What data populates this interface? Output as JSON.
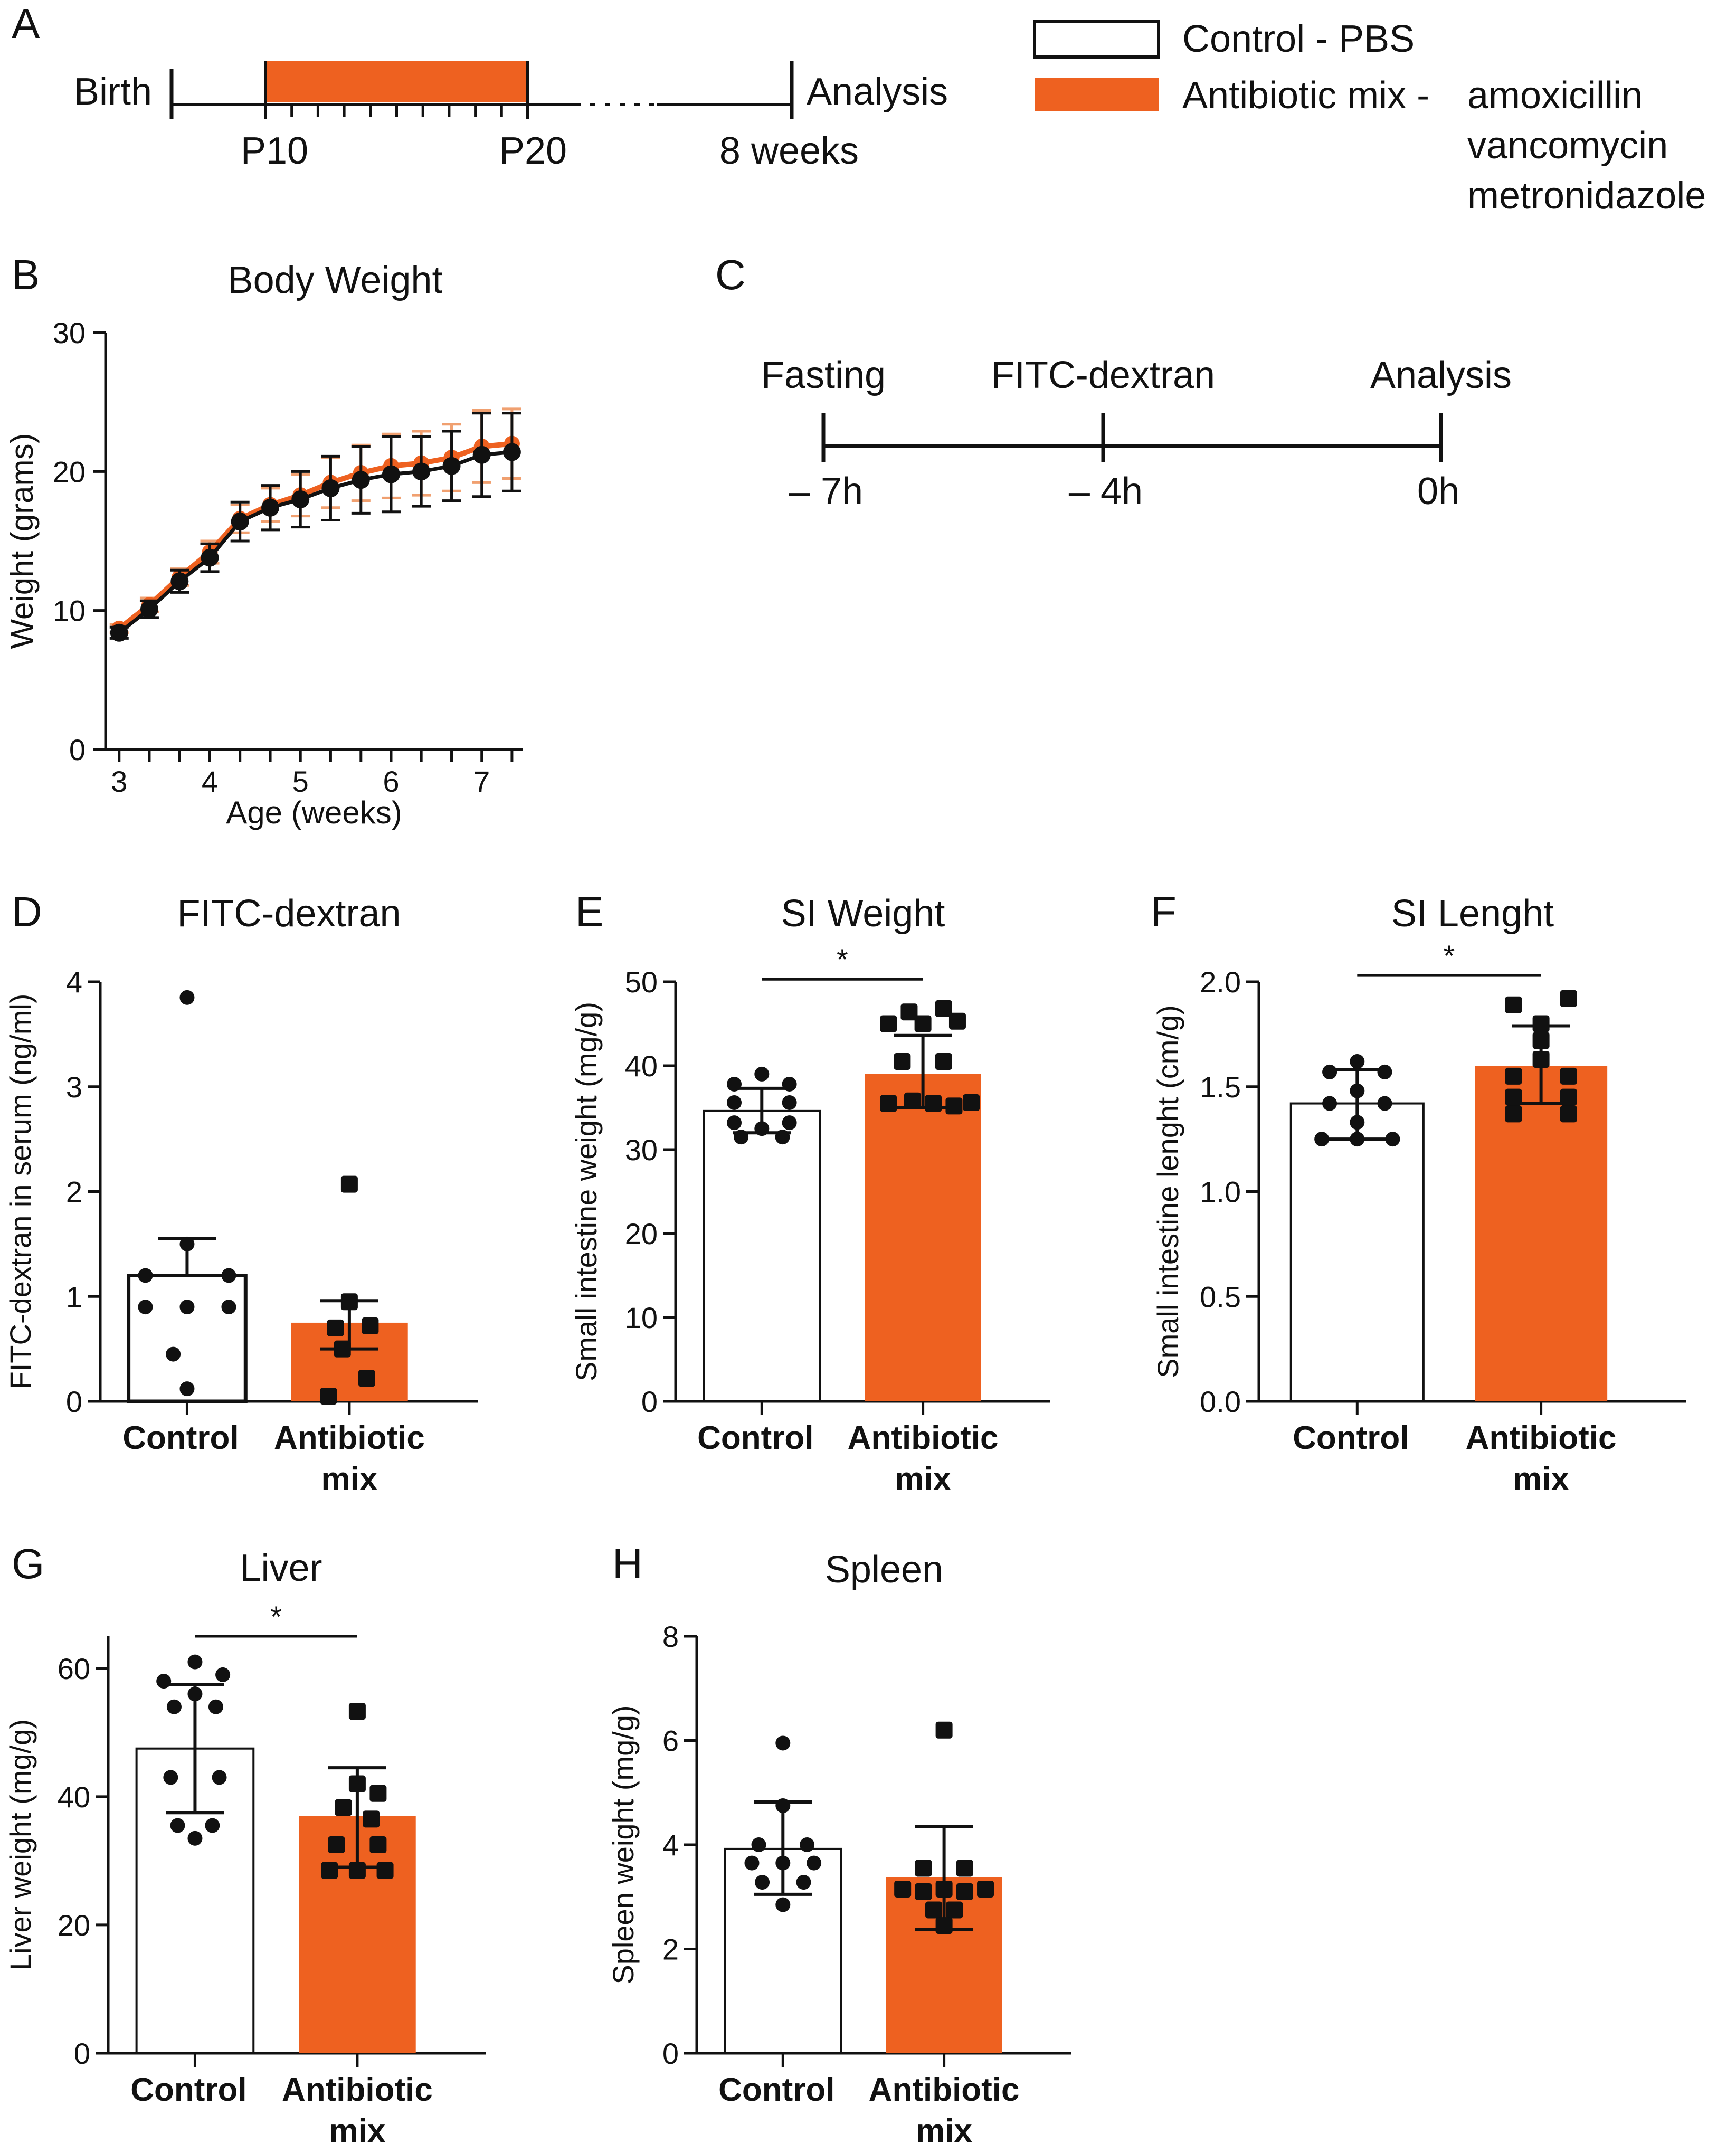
{
  "colors": {
    "orange": "#EE6120",
    "control_fill": "#ffffff",
    "ink": "#111111",
    "orange_err": "#F0A070"
  },
  "panel_letters": [
    "A",
    "B",
    "C",
    "D",
    "E",
    "F",
    "G",
    "H"
  ],
  "timeline_a": {
    "birth": "Birth",
    "analysis": "Analysis",
    "p10": "P10",
    "p20": "P20",
    "end": "8 weeks",
    "treatment_ticks": 10
  },
  "legend": {
    "control": "Control - PBS",
    "antibiotic": "Antibiotic mix -",
    "drugs": [
      "amoxicillin",
      "vancomycin",
      "metronidazole"
    ]
  },
  "timeline_c": {
    "events": [
      {
        "label": "Fasting",
        "time": "– 7h",
        "t": -7
      },
      {
        "label": "FITC-dextran",
        "time": "– 4h",
        "t": -4
      },
      {
        "label": "Analysis",
        "time": "0h",
        "t": 0
      }
    ]
  },
  "chart_data": [
    {
      "id": "B",
      "type": "line",
      "title": "Body Weight",
      "xlabel": "Age (weeks)",
      "ylabel": "Weight (grams)",
      "xlim": [
        2.85,
        7.45
      ],
      "ylim": [
        0,
        30
      ],
      "xticks": [
        3,
        4,
        5,
        6,
        7
      ],
      "xminor": [
        3,
        3.333,
        3.667,
        4,
        4.333,
        4.667,
        5,
        5.333,
        5.667,
        6,
        6.333,
        6.667,
        7,
        7.333
      ],
      "yticks": [
        0,
        10,
        20,
        30
      ],
      "series": [
        {
          "name": "Control - PBS",
          "color": "#111111",
          "x": [
            3,
            3.333,
            3.667,
            4,
            4.333,
            4.667,
            5,
            5.333,
            5.667,
            6,
            6.333,
            6.667,
            7,
            7.333
          ],
          "y": [
            8.4,
            10.1,
            12.1,
            13.8,
            16.4,
            17.4,
            18.0,
            18.8,
            19.4,
            19.8,
            20.0,
            20.4,
            21.2,
            21.4
          ],
          "err": [
            0.4,
            0.6,
            0.8,
            1.0,
            1.4,
            1.6,
            2.0,
            2.3,
            2.4,
            2.7,
            2.5,
            2.5,
            3.0,
            2.8
          ]
        },
        {
          "name": "Antibiotic mix",
          "color": "#EE6120",
          "x": [
            3,
            3.333,
            3.667,
            4,
            4.333,
            4.667,
            5,
            5.333,
            5.667,
            6,
            6.333,
            6.667,
            7,
            7.333
          ],
          "y": [
            8.7,
            10.4,
            12.4,
            14.2,
            16.6,
            17.6,
            18.3,
            19.2,
            19.9,
            20.4,
            20.6,
            21.0,
            21.8,
            22.0
          ],
          "err": [
            0.3,
            0.5,
            0.6,
            0.8,
            1.0,
            1.2,
            1.5,
            1.8,
            2.0,
            2.3,
            2.3,
            2.4,
            2.6,
            2.5
          ]
        }
      ]
    },
    {
      "id": "D",
      "type": "bar",
      "title": "FITC-dextran",
      "ylabel": "FITC-dextran in serum (ng/ml)",
      "ylim": [
        0,
        4
      ],
      "yticks": [
        0,
        1,
        2,
        3,
        4
      ],
      "ytick_labels": [
        "0",
        "1",
        "2",
        "3",
        "4"
      ],
      "categories": [
        [
          "Control"
        ],
        [
          "Antibiotic",
          "mix"
        ]
      ],
      "means": [
        1.2,
        0.75
      ],
      "err_hi": [
        1.55,
        0.96
      ],
      "err_lo": [
        null,
        0.5
      ],
      "control_stroke_width": 7,
      "points": [
        [
          [
            0,
            3.85
          ],
          [
            0,
            1.5
          ],
          [
            -0.6,
            1.2
          ],
          [
            0.6,
            1.2
          ],
          [
            -0.6,
            0.9
          ],
          [
            0,
            0.9
          ],
          [
            0.6,
            0.9
          ],
          [
            -0.2,
            0.45
          ],
          [
            0,
            0.12
          ]
        ],
        [
          [
            0,
            2.07
          ],
          [
            0,
            0.95
          ],
          [
            0.3,
            0.72
          ],
          [
            -0.2,
            0.7
          ],
          [
            -0.1,
            0.5
          ],
          [
            0.25,
            0.22
          ],
          [
            -0.3,
            0.05
          ]
        ]
      ],
      "significance": null
    },
    {
      "id": "E",
      "type": "bar",
      "title": "SI Weight",
      "ylabel": "Small intestine weight (mg/g)",
      "ylim": [
        0,
        50
      ],
      "yticks": [
        0,
        10,
        20,
        30,
        40,
        50
      ],
      "ytick_labels": [
        "0",
        "10",
        "20",
        "30",
        "40",
        "50"
      ],
      "categories": [
        [
          "Control"
        ],
        [
          "Antibiotic",
          "mix"
        ]
      ],
      "means": [
        34.6,
        39.0
      ],
      "err_hi": [
        37.3,
        43.6
      ],
      "err_lo": [
        32.0,
        35.0
      ],
      "control_stroke_width": 4,
      "points": [
        [
          [
            0,
            39.0
          ],
          [
            -0.4,
            37.8
          ],
          [
            0.4,
            37.8
          ],
          [
            -0.4,
            35.6
          ],
          [
            0.4,
            35.6
          ],
          [
            -0.4,
            33.2
          ],
          [
            0.4,
            33.2
          ],
          [
            0,
            32.5
          ],
          [
            -0.3,
            31.5
          ],
          [
            0.3,
            31.5
          ]
        ],
        [
          [
            -0.2,
            46.4
          ],
          [
            0.3,
            46.8
          ],
          [
            -0.5,
            45.0
          ],
          [
            0,
            45.0
          ],
          [
            0.5,
            45.3
          ],
          [
            -0.3,
            40.5
          ],
          [
            0.3,
            40.5
          ],
          [
            -0.5,
            35.5
          ],
          [
            -0.15,
            35.8
          ],
          [
            0.15,
            35.5
          ],
          [
            0.45,
            35.2
          ],
          [
            0.7,
            35.6
          ]
        ]
      ],
      "significance": {
        "label": "*",
        "y": 50.3
      }
    },
    {
      "id": "F",
      "type": "bar",
      "title": "SI Lenght",
      "ylabel": "Small intestine lenght (cm/g)",
      "ylim": [
        0,
        2
      ],
      "yticks": [
        0,
        0.5,
        1,
        1.5,
        2
      ],
      "ytick_labels": [
        "0.0",
        "0.5",
        "1.0",
        "1.5",
        "2.0"
      ],
      "categories": [
        [
          "Control"
        ],
        [
          "Antibiotic",
          "mix"
        ]
      ],
      "means": [
        1.42,
        1.6
      ],
      "err_hi": [
        1.58,
        1.79
      ],
      "err_lo": [
        1.25,
        1.42
      ],
      "control_stroke_width": 4,
      "points": [
        [
          [
            0,
            1.62
          ],
          [
            -0.35,
            1.57
          ],
          [
            0.35,
            1.57
          ],
          [
            0,
            1.48
          ],
          [
            -0.35,
            1.42
          ],
          [
            0.35,
            1.42
          ],
          [
            0,
            1.33
          ],
          [
            -0.45,
            1.25
          ],
          [
            0,
            1.25
          ],
          [
            0.45,
            1.25
          ]
        ],
        [
          [
            -0.35,
            1.89
          ],
          [
            0.35,
            1.92
          ],
          [
            0,
            1.8
          ],
          [
            0,
            1.72
          ],
          [
            0,
            1.63
          ],
          [
            -0.35,
            1.55
          ],
          [
            0.35,
            1.55
          ],
          [
            -0.35,
            1.45
          ],
          [
            0.35,
            1.45
          ],
          [
            -0.35,
            1.37
          ],
          [
            0.35,
            1.37
          ]
        ]
      ],
      "significance": {
        "label": "*",
        "y": 2.03
      }
    },
    {
      "id": "G",
      "type": "bar",
      "title": "Liver",
      "ylabel": "Liver weight (mg/g)",
      "ylim": [
        0,
        65
      ],
      "yticks": [
        0,
        20,
        40,
        60
      ],
      "ytick_labels": [
        "0",
        "20",
        "40",
        "60"
      ],
      "categories": [
        [
          "Control"
        ],
        [
          "Antibiotic",
          "mix"
        ]
      ],
      "means": [
        47.5,
        37.0
      ],
      "err_hi": [
        57.5,
        44.5
      ],
      "err_lo": [
        37.5,
        29.0
      ],
      "control_stroke_width": 4,
      "points": [
        [
          [
            0,
            61.0
          ],
          [
            -0.45,
            58.0
          ],
          [
            0.4,
            59.0
          ],
          [
            0,
            56.0
          ],
          [
            -0.3,
            54.0
          ],
          [
            0.3,
            54.0
          ],
          [
            -0.35,
            43.0
          ],
          [
            0.35,
            43.0
          ],
          [
            -0.25,
            35.5
          ],
          [
            0.25,
            35.5
          ],
          [
            0,
            33.5
          ]
        ],
        [
          [
            0,
            53.3
          ],
          [
            0,
            42.0
          ],
          [
            0.3,
            40.5
          ],
          [
            -0.2,
            38.3
          ],
          [
            0.2,
            36.5
          ],
          [
            -0.3,
            32.5
          ],
          [
            0.3,
            32.5
          ],
          [
            -0.4,
            28.5
          ],
          [
            0,
            28.5
          ],
          [
            0.4,
            28.5
          ]
        ]
      ],
      "significance": {
        "label": "*",
        "y": 65.0
      }
    },
    {
      "id": "H",
      "type": "bar",
      "title": "Spleen",
      "ylabel": "Spleen weight (mg/g)",
      "ylim": [
        0,
        8
      ],
      "yticks": [
        0,
        2,
        4,
        6,
        8
      ],
      "ytick_labels": [
        "0",
        "2",
        "4",
        "6",
        "8"
      ],
      "categories": [
        [
          "Control"
        ],
        [
          "Antibiotic",
          "mix"
        ]
      ],
      "means": [
        3.92,
        3.38
      ],
      "err_hi": [
        4.82,
        4.35
      ],
      "err_lo": [
        3.05,
        2.38
      ],
      "control_stroke_width": 4,
      "points": [
        [
          [
            0,
            5.95
          ],
          [
            0,
            4.75
          ],
          [
            -0.35,
            4.0
          ],
          [
            0.35,
            4.0
          ],
          [
            -0.45,
            3.65
          ],
          [
            0,
            3.65
          ],
          [
            0.45,
            3.65
          ],
          [
            -0.3,
            3.28
          ],
          [
            0.3,
            3.28
          ],
          [
            0,
            2.85
          ]
        ],
        [
          [
            0,
            6.2
          ],
          [
            -0.3,
            3.55
          ],
          [
            0.3,
            3.55
          ],
          [
            -0.6,
            3.15
          ],
          [
            -0.3,
            3.1
          ],
          [
            0,
            3.15
          ],
          [
            0.3,
            3.1
          ],
          [
            0.6,
            3.15
          ],
          [
            -0.15,
            2.75
          ],
          [
            0.15,
            2.75
          ],
          [
            0,
            2.45
          ]
        ]
      ],
      "significance": null
    }
  ]
}
